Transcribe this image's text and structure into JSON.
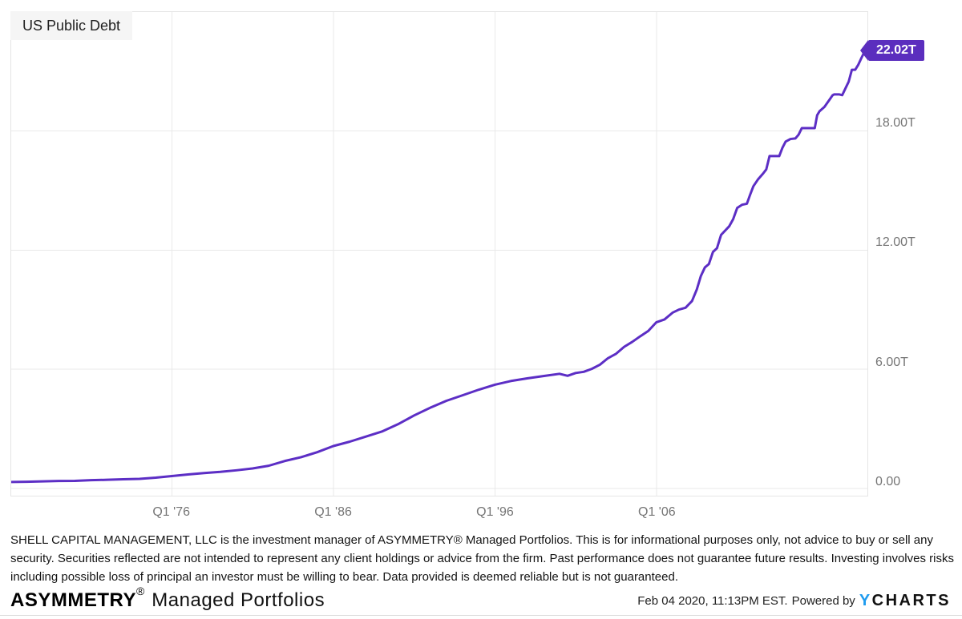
{
  "chart": {
    "title": "US Public Debt",
    "badge_label": "22.02T"
  },
  "chart_data": {
    "type": "line",
    "title": "US Public Debt",
    "unit": "trillions of USD",
    "grid": true,
    "legend": "none",
    "x_range": [
      1966.06,
      2019.06
    ],
    "y_range": [
      -0.37,
      24.0
    ],
    "x_ticks": [
      {
        "pos": 1976.0,
        "label": "Q1 '76"
      },
      {
        "pos": 1986.0,
        "label": "Q1 '86"
      },
      {
        "pos": 1996.0,
        "label": "Q1 '96"
      },
      {
        "pos": 2006.0,
        "label": "Q1 '06"
      }
    ],
    "y_ticks": [
      {
        "value": 18,
        "label": "18.00T"
      },
      {
        "value": 12,
        "label": "12.00T"
      },
      {
        "value": 6,
        "label": "6.00T"
      },
      {
        "value": 0,
        "label": "0.00"
      }
    ],
    "series": [
      {
        "name": "US Public Debt",
        "color": "#5c2ec5",
        "last_value": 22.02,
        "last_label": "22.02T",
        "points": [
          [
            1966.1,
            0.32
          ],
          [
            1967,
            0.33
          ],
          [
            1968,
            0.35
          ],
          [
            1969,
            0.37
          ],
          [
            1970,
            0.38
          ],
          [
            1971,
            0.41
          ],
          [
            1972,
            0.43
          ],
          [
            1973,
            0.46
          ],
          [
            1974,
            0.48
          ],
          [
            1975,
            0.54
          ],
          [
            1976,
            0.62
          ],
          [
            1977,
            0.7
          ],
          [
            1978,
            0.77
          ],
          [
            1979,
            0.83
          ],
          [
            1980,
            0.91
          ],
          [
            1981,
            1.0
          ],
          [
            1982,
            1.14
          ],
          [
            1983,
            1.38
          ],
          [
            1984,
            1.57
          ],
          [
            1985,
            1.82
          ],
          [
            1986,
            2.13
          ],
          [
            1987,
            2.35
          ],
          [
            1988,
            2.6
          ],
          [
            1989,
            2.86
          ],
          [
            1990,
            3.23
          ],
          [
            1991,
            3.67
          ],
          [
            1992,
            4.06
          ],
          [
            1993,
            4.41
          ],
          [
            1994,
            4.69
          ],
          [
            1995,
            4.97
          ],
          [
            1996,
            5.22
          ],
          [
            1997,
            5.41
          ],
          [
            1998,
            5.54
          ],
          [
            1999,
            5.66
          ],
          [
            2000,
            5.77
          ],
          [
            2000.5,
            5.67
          ],
          [
            2001,
            5.81
          ],
          [
            2001.5,
            5.87
          ],
          [
            2002,
            6.02
          ],
          [
            2002.5,
            6.23
          ],
          [
            2003,
            6.56
          ],
          [
            2003.5,
            6.78
          ],
          [
            2004,
            7.13
          ],
          [
            2004.5,
            7.38
          ],
          [
            2005,
            7.66
          ],
          [
            2005.5,
            7.93
          ],
          [
            2006,
            8.37
          ],
          [
            2006.5,
            8.51
          ],
          [
            2007,
            8.85
          ],
          [
            2007.4,
            9.01
          ],
          [
            2007.8,
            9.1
          ],
          [
            2008.2,
            9.44
          ],
          [
            2008.5,
            10.02
          ],
          [
            2008.75,
            10.7
          ],
          [
            2009,
            11.13
          ],
          [
            2009.25,
            11.3
          ],
          [
            2009.5,
            11.91
          ],
          [
            2009.75,
            12.1
          ],
          [
            2010,
            12.77
          ],
          [
            2010.5,
            13.2
          ],
          [
            2010.75,
            13.56
          ],
          [
            2011,
            14.13
          ],
          [
            2011.3,
            14.29
          ],
          [
            2011.6,
            14.34
          ],
          [
            2011.8,
            14.79
          ],
          [
            2012,
            15.22
          ],
          [
            2012.3,
            15.58
          ],
          [
            2012.6,
            15.86
          ],
          [
            2012.8,
            16.07
          ],
          [
            2013,
            16.74
          ],
          [
            2013.6,
            16.74
          ],
          [
            2013.8,
            17.16
          ],
          [
            2014,
            17.47
          ],
          [
            2014.3,
            17.6
          ],
          [
            2014.6,
            17.63
          ],
          [
            2014.8,
            17.82
          ],
          [
            2015,
            18.15
          ],
          [
            2015.8,
            18.15
          ],
          [
            2015.95,
            18.8
          ],
          [
            2016.1,
            19.0
          ],
          [
            2016.4,
            19.22
          ],
          [
            2016.7,
            19.57
          ],
          [
            2016.9,
            19.8
          ],
          [
            2017,
            19.85
          ],
          [
            2017.3,
            19.85
          ],
          [
            2017.5,
            19.81
          ],
          [
            2017.75,
            20.24
          ],
          [
            2017.9,
            20.49
          ],
          [
            2018.1,
            21.09
          ],
          [
            2018.3,
            21.09
          ],
          [
            2018.5,
            21.35
          ],
          [
            2018.7,
            21.7
          ],
          [
            2018.85,
            21.95
          ],
          [
            2019.06,
            22.02
          ]
        ]
      }
    ]
  },
  "disclaimer": "SHELL CAPITAL MANAGEMENT, LLC is the investment manager of ASYMMETRY® Managed Portfolios. This is for informational purposes only, not advice to buy or sell any security. Securities reflected are not intended to represent any client holdings or advice from the firm. Past performance does not guarantee future results. Investing involves risks including possible loss of principal an investor must be willing to bear. Data provided is deemed reliable but is not guaranteed.",
  "footer": {
    "brand": "ASYMMETRY",
    "reg_mark": "®",
    "brand_suffix": "Managed Portfolios",
    "timestamp": "Feb 04 2020, 11:13PM EST.",
    "powered_by": "Powered by",
    "logo_y": "Y",
    "logo_charts": "CHARTS"
  },
  "colors": {
    "line": "#5c2ec5",
    "badge_bg": "#5b2ebe",
    "grid": "#e9e9e9",
    "plot_border": "#e5e5e5",
    "axis_text": "#757575",
    "ycharts_blue": "#1e9bef"
  }
}
